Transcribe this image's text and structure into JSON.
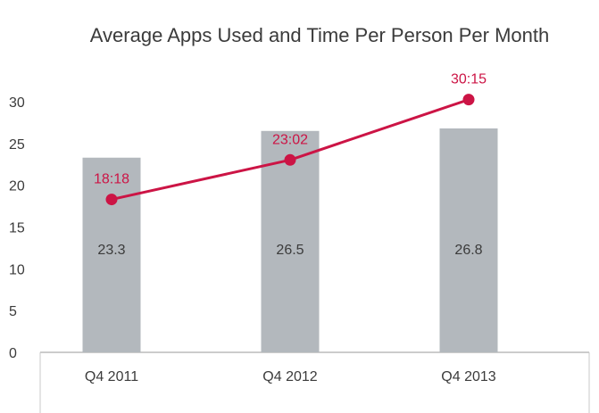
{
  "chart_data": {
    "type": "bar",
    "title": "Average Apps Used and Time Per Person Per Month",
    "categories": [
      "Q4 2011",
      "Q4 2012",
      "Q4 2013"
    ],
    "ylim": [
      0,
      30
    ],
    "yticks": [
      0,
      5,
      10,
      15,
      20,
      25,
      30
    ],
    "grid": false,
    "series": [
      {
        "type": "bar",
        "values": [
          23.3,
          26.5,
          26.8
        ],
        "labels": [
          "23.3",
          "26.5",
          "26.8"
        ],
        "color": "#b3b8bd"
      },
      {
        "type": "line",
        "values": [
          18.3,
          23.03,
          30.25
        ],
        "labels": [
          "18:18",
          "23:02",
          "30:15"
        ],
        "color": "#cc1445"
      }
    ]
  }
}
